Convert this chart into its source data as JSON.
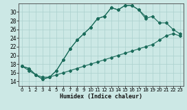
{
  "xlabel": "Humidex (Indice chaleur)",
  "bg_color": "#cce8e5",
  "grid_color": "#aad0cd",
  "line_color": "#1a6b5a",
  "xlim": [
    -0.5,
    23.5
  ],
  "ylim": [
    13.0,
    32.0
  ],
  "xticks": [
    0,
    1,
    2,
    3,
    4,
    5,
    6,
    7,
    8,
    9,
    10,
    11,
    12,
    13,
    14,
    15,
    16,
    17,
    18,
    19,
    20,
    21,
    22,
    23
  ],
  "yticks": [
    14,
    16,
    18,
    20,
    22,
    24,
    26,
    28,
    30
  ],
  "series": [
    {
      "x": [
        0,
        1,
        2,
        3,
        4,
        5,
        6,
        7,
        8,
        9,
        10,
        11,
        12,
        13,
        14,
        15,
        16,
        17,
        18
      ],
      "y": [
        17.5,
        17.0,
        15.5,
        14.5,
        15.0,
        16.5,
        19.0,
        21.5,
        23.5,
        25.0,
        26.5,
        28.5,
        29.0,
        31.0,
        30.5,
        31.5,
        31.5,
        30.5,
        29.0
      ]
    },
    {
      "x": [
        0,
        1,
        2,
        3,
        4,
        5,
        6,
        7,
        8,
        9,
        10,
        11,
        12,
        13,
        14,
        15,
        16,
        17,
        18,
        19,
        20,
        21,
        22,
        23
      ],
      "y": [
        17.5,
        17.0,
        15.5,
        14.5,
        15.0,
        16.5,
        19.0,
        21.5,
        23.5,
        25.0,
        26.5,
        28.5,
        29.0,
        31.0,
        30.5,
        31.5,
        31.5,
        30.5,
        28.5,
        29.0,
        27.5,
        27.5,
        26.0,
        25.0
      ]
    },
    {
      "x": [
        0,
        1,
        2,
        3,
        4,
        5,
        6,
        7,
        8,
        9,
        10,
        11,
        12,
        13,
        14,
        15,
        16,
        17,
        18,
        19,
        20,
        21,
        22,
        23
      ],
      "y": [
        17.5,
        16.5,
        15.5,
        15.0,
        15.0,
        15.5,
        16.0,
        16.5,
        17.0,
        17.5,
        18.0,
        18.5,
        19.0,
        19.5,
        20.0,
        20.5,
        21.0,
        21.5,
        22.0,
        22.5,
        23.5,
        24.5,
        25.0,
        24.5
      ]
    }
  ]
}
